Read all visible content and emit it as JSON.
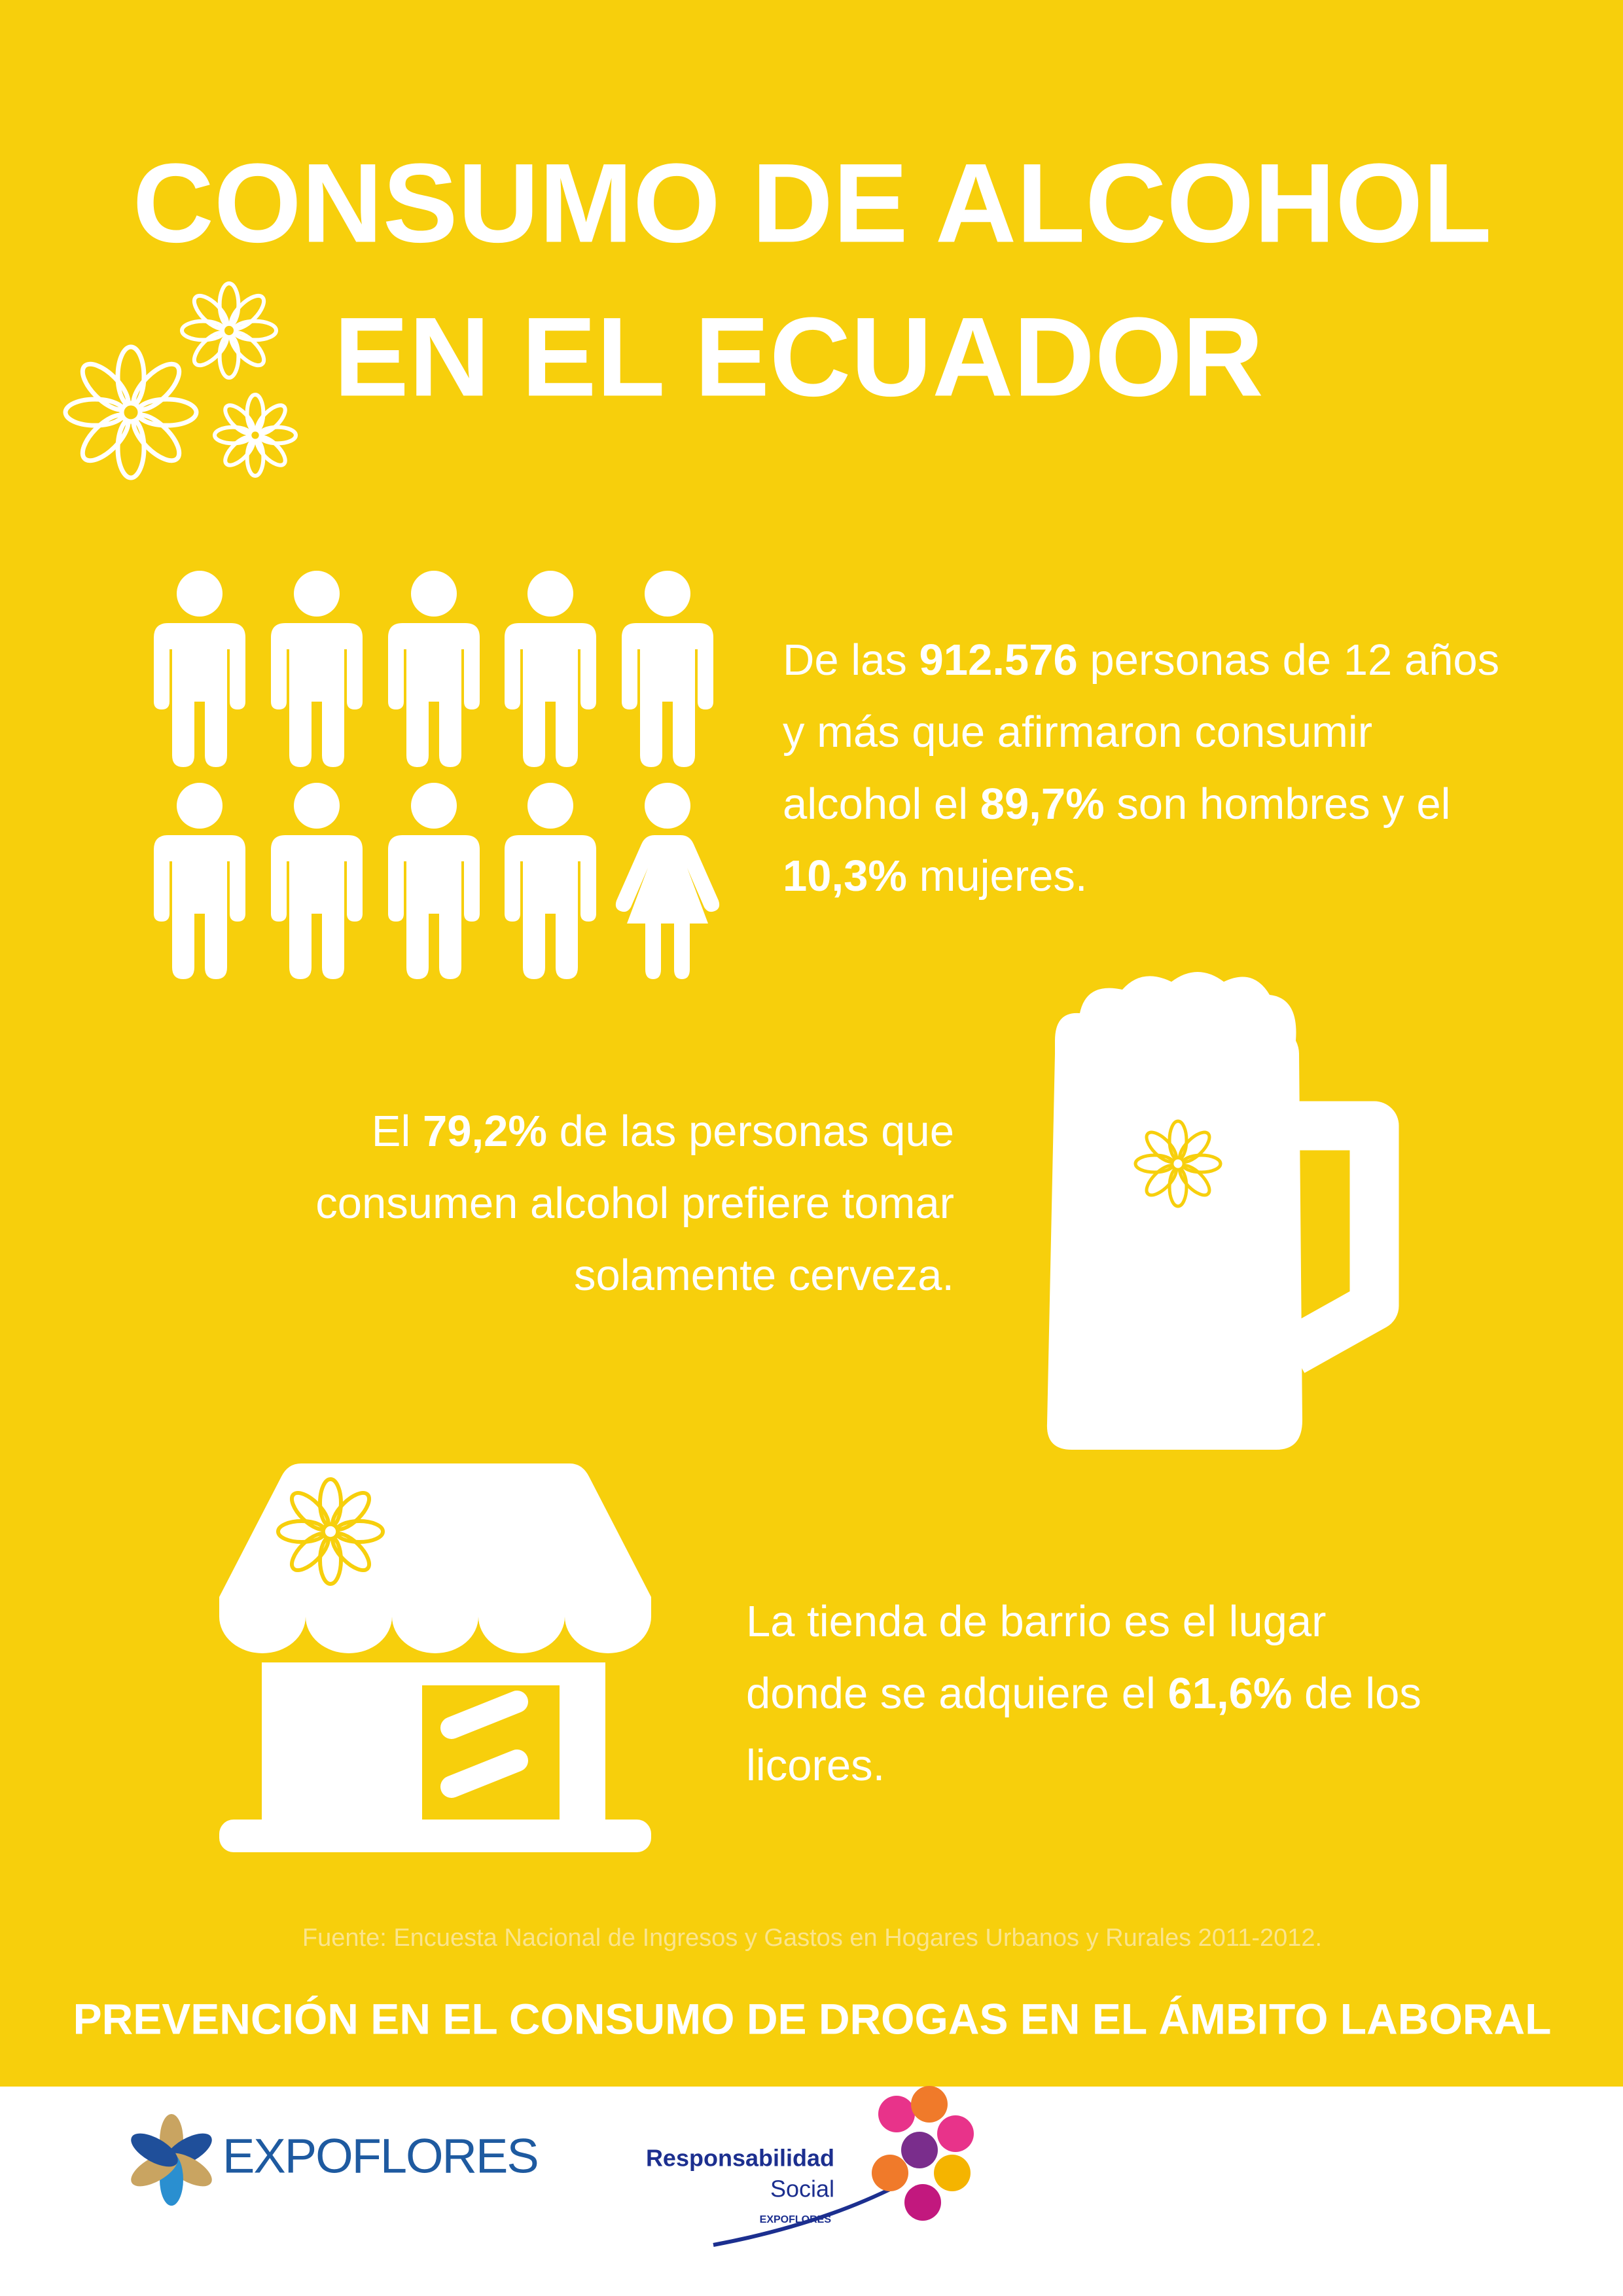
{
  "title": {
    "lines": [
      "CONSUMO DE ALCOHOL",
      "EN EL ECUADOR"
    ]
  },
  "stats": [
    {
      "lines": [
        [
          {
            "text": "De las "
          },
          {
            "text": "912.576",
            "bold": true
          },
          {
            "text": " personas de 12 años"
          }
        ],
        [
          {
            "text": "y más que afirmaron consumir"
          }
        ],
        [
          {
            "text": "alcohol el "
          },
          {
            "text": "89,7%",
            "bold": true
          },
          {
            "text": " son hombres y el"
          }
        ],
        [
          {
            "text": "10,3%",
            "bold": true
          },
          {
            "text": " mujeres."
          }
        ]
      ]
    },
    {
      "lines": [
        [
          {
            "text": "El "
          },
          {
            "text": "79,2%",
            "bold": true
          },
          {
            "text": " de las personas que"
          }
        ],
        [
          {
            "text": "consumen alcohol prefiere tomar"
          }
        ],
        [
          {
            "text": "solamente cerveza."
          }
        ]
      ]
    },
    {
      "lines": [
        [
          {
            "text": "La tienda de barrio es el lugar"
          }
        ],
        [
          {
            "text": "donde se adquiere el "
          },
          {
            "text": "61,6%",
            "bold": true
          },
          {
            "text": " de los"
          }
        ],
        [
          {
            "text": "licores."
          }
        ]
      ]
    }
  ],
  "source": "Fuente: Encuesta Nacional de Ingresos y Gastos en Hogares Urbanos y Rurales 2011-2012.",
  "footer": "PREVENCIÓN EN EL CONSUMO DE DROGAS EN EL ÁMBITO LABORAL",
  "logos": {
    "expoflores": "EXPOFLORES",
    "rs_line1": "Responsabilidad",
    "rs_line2": "Social",
    "rs_brand": "EXPOFLORES"
  }
}
